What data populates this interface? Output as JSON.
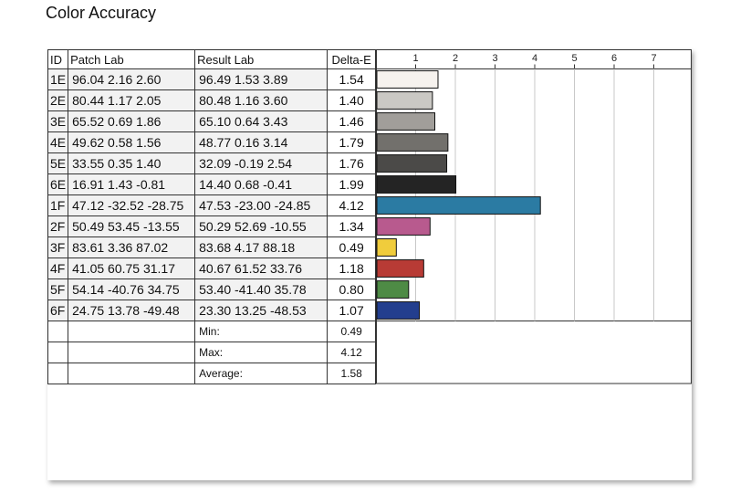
{
  "title": "Color Accuracy",
  "headers": {
    "id": "ID",
    "patch": "Patch Lab",
    "result": "Result Lab",
    "delta": "Delta-E"
  },
  "stats": [
    {
      "label": "Min:",
      "value": "0.49"
    },
    {
      "label": "Max:",
      "value": "4.12"
    },
    {
      "label": "Average:",
      "value": "1.58"
    }
  ],
  "chart_data": {
    "type": "bar",
    "orientation": "horizontal",
    "xlim": [
      0,
      8
    ],
    "ticks": [
      "1",
      "2",
      "3",
      "4",
      "5",
      "6",
      "7"
    ],
    "grid": true,
    "categories": [
      "1E",
      "2E",
      "3E",
      "4E",
      "5E",
      "6E",
      "1F",
      "2F",
      "3F",
      "4F",
      "5F",
      "6F"
    ],
    "patch_lab": [
      "96.04  2.16  2.60",
      "80.44  1.17  2.05",
      "65.52  0.69  1.86",
      "49.62  0.58  1.56",
      "33.55  0.35  1.40",
      "16.91  1.43 -0.81",
      "47.12 -32.52 -28.75",
      "50.49  53.45 -13.55",
      "83.61  3.36  87.02",
      "41.05  60.75  31.17",
      "54.14 -40.76  34.75",
      "24.75  13.78 -49.48"
    ],
    "result_lab": [
      "96.49  1.53  3.89",
      "80.48  1.16  3.60",
      "65.10  0.64  3.43",
      "48.77  0.16  3.14",
      "32.09 -0.19  2.54",
      "14.40  0.68 -0.41",
      "47.53 -23.00 -24.85",
      "50.29  52.69 -10.55",
      "83.68  4.17  88.18",
      "40.67  61.52  33.76",
      "53.40 -41.40  35.78",
      "23.30  13.25 -48.53"
    ],
    "delta_e_labels": [
      "1.54",
      "1.40",
      "1.46",
      "1.79",
      "1.76",
      "1.99",
      "4.12",
      "1.34",
      "0.49",
      "1.18",
      "0.80",
      "1.07"
    ],
    "values": [
      1.54,
      1.4,
      1.46,
      1.79,
      1.76,
      1.99,
      4.12,
      1.34,
      0.49,
      1.18,
      0.8,
      1.07
    ],
    "colors": [
      "#f6f2ee",
      "#cac8c4",
      "#a19e9a",
      "#72706c",
      "#4b4a48",
      "#242424",
      "#2b7ba3",
      "#b85a8e",
      "#f0cc3c",
      "#b83b35",
      "#4e8b45",
      "#233e8e"
    ]
  }
}
